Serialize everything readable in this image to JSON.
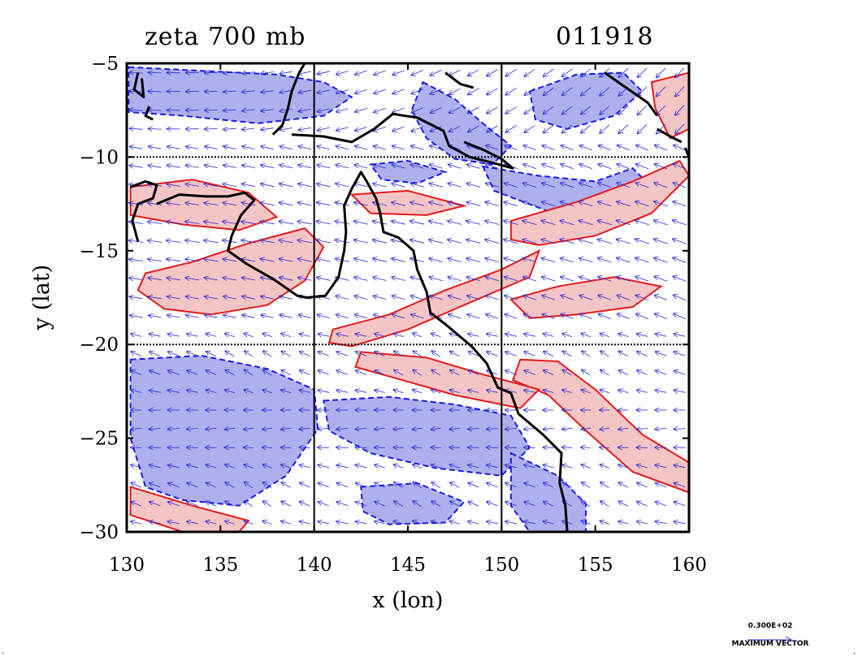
{
  "header": {
    "title": "zeta 700 mb",
    "date": "011918"
  },
  "legend": {
    "value_label": "0.300E+02",
    "caption": "MAXIMUM VECTOR"
  },
  "chart_data": {
    "type": "contour",
    "title": "zeta 700 mb",
    "subtitle": "011918",
    "xlabel": "x (lon)",
    "ylabel": "y (lat)",
    "xlim": [
      130,
      160
    ],
    "ylim": [
      -30,
      -5
    ],
    "xticks": [
      130,
      135,
      140,
      145,
      150,
      155,
      160
    ],
    "yticks": [
      -5,
      -10,
      -15,
      -20,
      -25,
      -30
    ],
    "xtick_labels": [
      "130",
      "135",
      "140",
      "145",
      "150",
      "155",
      "160"
    ],
    "ytick_labels": [
      "−5",
      "−10",
      "−15",
      "−20",
      "−25",
      "−30"
    ],
    "gridlines_lon": [
      140,
      150
    ],
    "gridlines_lat": [
      -10,
      -20
    ],
    "field": "relative vorticity (zeta) at 700 mb with wind vectors",
    "colors": {
      "positive_fill": "#f5c4c4",
      "positive_contour": "#e41a1c",
      "negative_fill": "#aeb0ee",
      "negative_contour": "#1a1ae8",
      "vector": "#2a2ad6",
      "coast": "#000000"
    },
    "positive_regions": [
      [
        [
          131.0,
          -16.2
        ],
        [
          133.5,
          -15.6
        ],
        [
          136.5,
          -14.6
        ],
        [
          139.5,
          -13.8
        ],
        [
          140.5,
          -14.8
        ],
        [
          139.5,
          -16.6
        ],
        [
          137.5,
          -17.9
        ],
        [
          134.5,
          -18.4
        ],
        [
          132.0,
          -18.1
        ],
        [
          130.6,
          -17.1
        ]
      ],
      [
        [
          130.2,
          -11.6
        ],
        [
          133.5,
          -11.2
        ],
        [
          136.5,
          -11.9
        ],
        [
          138.0,
          -13.2
        ],
        [
          136.0,
          -13.9
        ],
        [
          133.0,
          -13.6
        ],
        [
          130.2,
          -13.1
        ]
      ],
      [
        [
          141.0,
          -19.2
        ],
        [
          144.0,
          -18.4
        ],
        [
          147.0,
          -17.1
        ],
        [
          150.0,
          -16.0
        ],
        [
          152.0,
          -15.0
        ],
        [
          151.5,
          -16.4
        ],
        [
          148.0,
          -17.9
        ],
        [
          145.0,
          -19.2
        ],
        [
          142.0,
          -20.1
        ],
        [
          140.8,
          -19.9
        ]
      ],
      [
        [
          151.0,
          -20.8
        ],
        [
          153.0,
          -20.9
        ],
        [
          155.0,
          -22.4
        ],
        [
          157.5,
          -24.8
        ],
        [
          160.0,
          -26.3
        ],
        [
          160.0,
          -27.9
        ],
        [
          157.0,
          -26.8
        ],
        [
          154.5,
          -24.6
        ],
        [
          152.5,
          -22.7
        ],
        [
          150.6,
          -21.9
        ]
      ],
      [
        [
          142.5,
          -20.4
        ],
        [
          146.0,
          -20.7
        ],
        [
          149.0,
          -21.6
        ],
        [
          152.0,
          -22.4
        ],
        [
          151.0,
          -23.4
        ],
        [
          147.5,
          -22.7
        ],
        [
          144.0,
          -21.7
        ],
        [
          142.2,
          -21.2
        ]
      ],
      [
        [
          150.5,
          -13.4
        ],
        [
          154.0,
          -12.4
        ],
        [
          157.0,
          -11.3
        ],
        [
          159.5,
          -10.2
        ],
        [
          160.0,
          -11.0
        ],
        [
          158.0,
          -13.0
        ],
        [
          155.0,
          -14.2
        ],
        [
          152.0,
          -14.7
        ],
        [
          150.5,
          -14.4
        ]
      ],
      [
        [
          142.0,
          -12.0
        ],
        [
          145.0,
          -11.8
        ],
        [
          148.0,
          -12.6
        ],
        [
          146.0,
          -13.1
        ],
        [
          143.0,
          -13.0
        ]
      ],
      [
        [
          158.0,
          -6.0
        ],
        [
          160.0,
          -5.5
        ],
        [
          160.0,
          -8.5
        ],
        [
          159.0,
          -9.0
        ],
        [
          158.2,
          -7.4
        ]
      ],
      [
        [
          130.2,
          -27.6
        ],
        [
          133.5,
          -28.6
        ],
        [
          136.5,
          -29.4
        ],
        [
          136.0,
          -30.0
        ],
        [
          133.0,
          -30.0
        ],
        [
          130.2,
          -29.1
        ]
      ],
      [
        [
          150.5,
          -17.6
        ],
        [
          153.0,
          -16.9
        ],
        [
          156.0,
          -16.4
        ],
        [
          158.5,
          -16.9
        ],
        [
          157.0,
          -18.0
        ],
        [
          154.0,
          -18.4
        ],
        [
          151.5,
          -18.6
        ]
      ]
    ],
    "negative_regions": [
      [
        [
          130.1,
          -5.2
        ],
        [
          134.0,
          -5.4
        ],
        [
          138.0,
          -5.6
        ],
        [
          140.5,
          -6.0
        ],
        [
          142.0,
          -6.8
        ],
        [
          140.5,
          -7.8
        ],
        [
          137.0,
          -8.2
        ],
        [
          133.0,
          -7.8
        ],
        [
          130.1,
          -7.6
        ]
      ],
      [
        [
          145.8,
          -6.0
        ],
        [
          147.5,
          -6.9
        ],
        [
          149.0,
          -8.2
        ],
        [
          150.5,
          -9.4
        ],
        [
          149.5,
          -10.4
        ],
        [
          147.5,
          -10.1
        ],
        [
          146.0,
          -9.0
        ],
        [
          145.2,
          -7.5
        ]
      ],
      [
        [
          151.5,
          -6.5
        ],
        [
          154.0,
          -5.6
        ],
        [
          156.5,
          -5.5
        ],
        [
          157.5,
          -6.5
        ],
        [
          156.0,
          -7.8
        ],
        [
          153.5,
          -8.5
        ],
        [
          151.8,
          -8.0
        ]
      ],
      [
        [
          130.2,
          -20.8
        ],
        [
          134.0,
          -20.6
        ],
        [
          137.5,
          -21.3
        ],
        [
          140.0,
          -22.4
        ],
        [
          140.2,
          -24.5
        ],
        [
          138.5,
          -27.0
        ],
        [
          136.0,
          -28.6
        ],
        [
          133.0,
          -28.3
        ],
        [
          131.0,
          -27.6
        ],
        [
          130.2,
          -25.0
        ]
      ],
      [
        [
          140.5,
          -23.0
        ],
        [
          144.0,
          -22.8
        ],
        [
          147.5,
          -23.2
        ],
        [
          150.5,
          -23.8
        ],
        [
          151.5,
          -25.5
        ],
        [
          150.0,
          -27.0
        ],
        [
          146.5,
          -26.6
        ],
        [
          143.0,
          -25.8
        ],
        [
          140.8,
          -24.6
        ]
      ],
      [
        [
          150.5,
          -25.8
        ],
        [
          153.0,
          -27.0
        ],
        [
          154.5,
          -28.5
        ],
        [
          154.5,
          -30.0
        ],
        [
          151.5,
          -30.0
        ],
        [
          150.5,
          -28.6
        ]
      ],
      [
        [
          142.5,
          -27.6
        ],
        [
          145.5,
          -27.4
        ],
        [
          148.0,
          -28.4
        ],
        [
          147.0,
          -29.5
        ],
        [
          144.0,
          -29.6
        ],
        [
          142.6,
          -28.9
        ]
      ],
      [
        [
          149.0,
          -10.5
        ],
        [
          152.0,
          -11.0
        ],
        [
          155.0,
          -11.3
        ],
        [
          157.0,
          -10.6
        ],
        [
          158.0,
          -11.6
        ],
        [
          155.5,
          -12.6
        ],
        [
          152.5,
          -12.9
        ],
        [
          149.6,
          -11.8
        ]
      ],
      [
        [
          143.0,
          -10.4
        ],
        [
          145.0,
          -10.2
        ],
        [
          147.0,
          -10.8
        ],
        [
          145.5,
          -11.4
        ],
        [
          143.6,
          -11.2
        ]
      ]
    ],
    "coastlines": [
      [
        [
          137.8,
          -8.8
        ],
        [
          138.3,
          -8.3
        ],
        [
          138.6,
          -7.4
        ],
        [
          138.8,
          -6.5
        ],
        [
          139.2,
          -5.5
        ],
        [
          139.5,
          -5.0
        ]
      ],
      [
        [
          138.8,
          -8.8
        ],
        [
          140.5,
          -8.9
        ],
        [
          142.0,
          -9.2
        ],
        [
          143.2,
          -8.5
        ],
        [
          144.2,
          -7.7
        ],
        [
          145.5,
          -7.9
        ],
        [
          146.9,
          -8.6
        ],
        [
          147.2,
          -9.4
        ],
        [
          148.3,
          -10.0
        ],
        [
          149.5,
          -10.3
        ],
        [
          150.6,
          -10.6
        ],
        [
          150.0,
          -10.1
        ],
        [
          149.0,
          -9.6
        ],
        [
          148.0,
          -9.2
        ]
      ],
      [
        [
          147.0,
          -5.5
        ],
        [
          147.8,
          -6.1
        ],
        [
          148.5,
          -6.3
        ]
      ],
      [
        [
          130.2,
          -11.6
        ],
        [
          131.0,
          -11.3
        ],
        [
          131.6,
          -11.5
        ],
        [
          131.4,
          -12.2
        ],
        [
          130.6,
          -12.5
        ],
        [
          130.3,
          -13.4
        ],
        [
          130.6,
          -14.5
        ]
      ],
      [
        [
          131.6,
          -12.5
        ],
        [
          132.8,
          -12.0
        ],
        [
          134.2,
          -12.1
        ],
        [
          135.4,
          -12.1
        ],
        [
          136.3,
          -11.9
        ],
        [
          136.8,
          -12.3
        ],
        [
          136.1,
          -13.1
        ],
        [
          135.6,
          -14.2
        ],
        [
          135.4,
          -15.0
        ],
        [
          136.4,
          -15.7
        ],
        [
          137.8,
          -16.5
        ],
        [
          139.1,
          -17.4
        ],
        [
          139.6,
          -17.5
        ],
        [
          140.6,
          -17.4
        ],
        [
          141.3,
          -16.4
        ],
        [
          141.6,
          -15.0
        ],
        [
          141.7,
          -14.0
        ],
        [
          141.6,
          -12.6
        ],
        [
          142.0,
          -11.7
        ],
        [
          142.5,
          -10.8
        ],
        [
          142.8,
          -11.3
        ],
        [
          143.3,
          -12.2
        ],
        [
          143.5,
          -12.9
        ],
        [
          143.7,
          -14.0
        ],
        [
          144.5,
          -14.3
        ],
        [
          145.3,
          -15.0
        ],
        [
          145.5,
          -16.0
        ],
        [
          146.0,
          -17.2
        ],
        [
          146.2,
          -18.3
        ],
        [
          147.1,
          -19.0
        ],
        [
          148.4,
          -20.1
        ],
        [
          149.2,
          -21.0
        ],
        [
          149.8,
          -22.3
        ],
        [
          150.5,
          -22.6
        ],
        [
          150.9,
          -23.7
        ],
        [
          152.2,
          -24.8
        ],
        [
          153.2,
          -25.8
        ],
        [
          153.1,
          -27.4
        ],
        [
          153.4,
          -28.6
        ],
        [
          153.5,
          -30.0
        ]
      ],
      [
        [
          130.6,
          -5.5
        ],
        [
          130.4,
          -6.4
        ],
        [
          130.9,
          -6.8
        ],
        [
          130.8,
          -5.8
        ]
      ],
      [
        [
          131.2,
          -7.3
        ],
        [
          131.0,
          -7.8
        ],
        [
          131.4,
          -8.0
        ]
      ],
      [
        [
          155.5,
          -5.5
        ],
        [
          156.5,
          -6.2
        ],
        [
          157.8,
          -7.1
        ],
        [
          158.3,
          -7.8
        ]
      ],
      [
        [
          158.3,
          -8.5
        ],
        [
          159.0,
          -8.9
        ],
        [
          159.6,
          -9.2
        ]
      ],
      [
        [
          159.8,
          -9.5
        ],
        [
          160.0,
          -10.0
        ]
      ]
    ],
    "vectors": {
      "spacing_deg": 1.0,
      "max_speed": 30.0,
      "bands": [
        {
          "lat_max": -5,
          "lat_min": -9,
          "direction": "westward to south-westward"
        },
        {
          "lat_max": -9,
          "lat_min": -19,
          "direction": "easterly trades toward WNW"
        },
        {
          "lat_max": -19,
          "lat_min": -30,
          "direction": "weak, variable, mostly westward"
        }
      ]
    }
  }
}
